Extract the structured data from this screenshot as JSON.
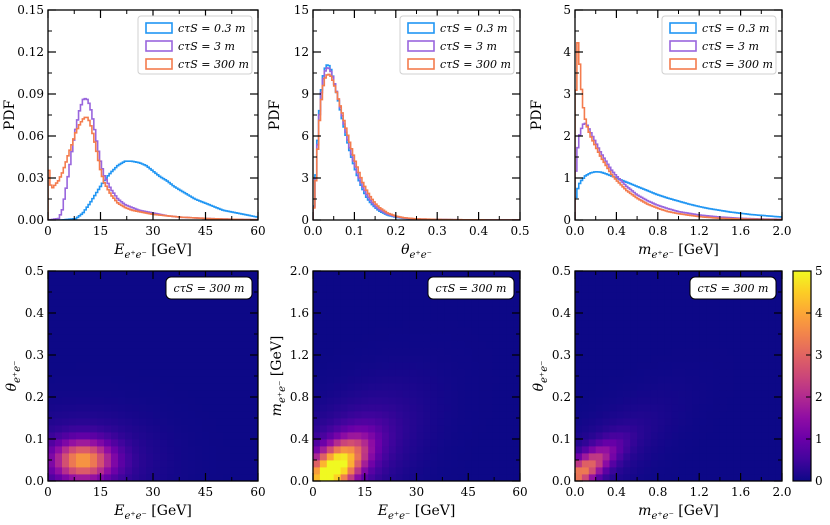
{
  "figure": {
    "colors": {
      "s03": "#2196f3",
      "s3": "#9966dd",
      "s300": "#f47c4e"
    },
    "colormap": [
      "#0d0887",
      "#41049d",
      "#6a00a8",
      "#8f0da4",
      "#b12a90",
      "#cc4778",
      "#e16462",
      "#f2844b",
      "#fca636",
      "#fcce25",
      "#f0f921"
    ]
  },
  "chart_data": [
    {
      "id": "hist_E",
      "type": "line",
      "subtype": "step-histogram",
      "xlabel": "E_{e+e-} [GeV]",
      "xlabel_main": "E",
      "xlabel_sub": "e⁺e⁻",
      "xlabel_unit": " [GeV]",
      "ylabel": "PDF",
      "xlim": [
        0,
        60
      ],
      "ylim": [
        0,
        0.15
      ],
      "xticks": [
        "0",
        "15",
        "30",
        "45",
        "60"
      ],
      "yticks": [
        "0.00",
        "0.03",
        "0.06",
        "0.09",
        "0.12",
        "0.15"
      ],
      "legend": [
        "cτS = 0.3 m",
        "cτS = 3 m",
        "cτS = 300 m"
      ],
      "series": [
        {
          "name": "cτS = 0.3 m",
          "x": [
            0,
            4,
            8,
            10,
            12,
            14,
            16,
            18,
            20,
            22,
            24,
            26,
            28,
            30,
            32,
            34,
            36,
            38,
            40,
            42,
            44,
            46,
            48,
            50,
            52,
            54,
            56,
            58,
            60
          ],
          "y": [
            0,
            0,
            0.001,
            0.005,
            0.012,
            0.02,
            0.028,
            0.034,
            0.039,
            0.042,
            0.042,
            0.041,
            0.039,
            0.035,
            0.031,
            0.028,
            0.024,
            0.021,
            0.018,
            0.015,
            0.013,
            0.011,
            0.009,
            0.007,
            0.006,
            0.005,
            0.004,
            0.003,
            0.002
          ]
        },
        {
          "name": "cτS = 3 m",
          "x": [
            0,
            3,
            4,
            5,
            6,
            7,
            8,
            9,
            10,
            11,
            12,
            13,
            14,
            15,
            16,
            18,
            20,
            22,
            24,
            26,
            28,
            30,
            34,
            38,
            42,
            46,
            50,
            55,
            60
          ],
          "y": [
            0,
            0.001,
            0.006,
            0.02,
            0.035,
            0.052,
            0.066,
            0.078,
            0.086,
            0.087,
            0.082,
            0.07,
            0.055,
            0.042,
            0.032,
            0.022,
            0.015,
            0.011,
            0.009,
            0.007,
            0.006,
            0.005,
            0.003,
            0.002,
            0.0015,
            0.001,
            0.0007,
            0.0004,
            0.0002
          ]
        },
        {
          "name": "cτS = 300 m",
          "x": [
            0,
            0.5,
            1,
            2,
            3,
            4,
            5,
            6,
            7,
            8,
            9,
            10,
            11,
            12,
            13,
            14,
            15,
            16,
            18,
            20,
            22,
            24,
            26,
            28,
            30,
            34,
            38,
            42,
            46,
            50,
            55,
            60
          ],
          "y": [
            0.042,
            0.03,
            0.022,
            0.025,
            0.028,
            0.033,
            0.04,
            0.048,
            0.055,
            0.063,
            0.068,
            0.072,
            0.074,
            0.07,
            0.06,
            0.048,
            0.036,
            0.027,
            0.018,
            0.012,
            0.009,
            0.007,
            0.006,
            0.005,
            0.004,
            0.003,
            0.002,
            0.0015,
            0.001,
            0.0007,
            0.0004,
            0.0002
          ]
        }
      ]
    },
    {
      "id": "hist_theta",
      "type": "line",
      "subtype": "step-histogram",
      "xlabel": "θ_{e+e-}",
      "xlabel_main": "θ",
      "xlabel_sub": "e⁺e⁻",
      "xlabel_unit": "",
      "ylabel": "PDF",
      "xlim": [
        0,
        0.5
      ],
      "ylim": [
        0,
        15
      ],
      "xticks": [
        "0.0",
        "0.1",
        "0.2",
        "0.3",
        "0.4",
        "0.5"
      ],
      "yticks": [
        "0",
        "3",
        "6",
        "9",
        "12",
        "15"
      ],
      "legend": [
        "cτS = 0.3 m",
        "cτS = 3 m",
        "cτS = 300 m"
      ],
      "series": [
        {
          "name": "cτS = 0.3 m",
          "x": [
            0,
            0.005,
            0.01,
            0.015,
            0.02,
            0.025,
            0.03,
            0.035,
            0.04,
            0.045,
            0.05,
            0.06,
            0.07,
            0.08,
            0.09,
            0.1,
            0.11,
            0.12,
            0.13,
            0.14,
            0.15,
            0.16,
            0.18,
            0.2,
            0.22,
            0.25,
            0.3,
            0.35,
            0.4,
            0.45,
            0.5
          ],
          "y": [
            0,
            2.2,
            5.0,
            7.5,
            9.2,
            10.3,
            10.9,
            11.1,
            11.0,
            10.6,
            10.0,
            8.7,
            7.3,
            6.0,
            4.8,
            3.8,
            2.9,
            2.2,
            1.6,
            1.2,
            0.9,
            0.65,
            0.35,
            0.2,
            0.12,
            0.06,
            0.03,
            0.015,
            0.008,
            0.004,
            0.002
          ]
        },
        {
          "name": "cτS = 3 m",
          "x": [
            0,
            0.005,
            0.01,
            0.015,
            0.02,
            0.025,
            0.03,
            0.035,
            0.04,
            0.045,
            0.05,
            0.06,
            0.07,
            0.08,
            0.09,
            0.1,
            0.11,
            0.12,
            0.13,
            0.14,
            0.15,
            0.16,
            0.18,
            0.2,
            0.22,
            0.25,
            0.3,
            0.35,
            0.4,
            0.45,
            0.5
          ],
          "y": [
            0,
            2.0,
            4.7,
            7.2,
            9.0,
            10.1,
            10.7,
            10.9,
            10.8,
            10.5,
            10.0,
            8.8,
            7.5,
            6.2,
            5.0,
            4.0,
            3.1,
            2.4,
            1.8,
            1.35,
            1.0,
            0.75,
            0.42,
            0.24,
            0.14,
            0.07,
            0.035,
            0.018,
            0.01,
            0.005,
            0.003
          ]
        },
        {
          "name": "cτS = 300 m",
          "x": [
            0,
            0.005,
            0.01,
            0.015,
            0.02,
            0.025,
            0.03,
            0.035,
            0.04,
            0.045,
            0.05,
            0.06,
            0.07,
            0.08,
            0.09,
            0.1,
            0.11,
            0.12,
            0.13,
            0.14,
            0.15,
            0.16,
            0.18,
            0.2,
            0.22,
            0.25,
            0.3,
            0.35,
            0.4,
            0.45,
            0.5
          ],
          "y": [
            0,
            1.9,
            4.4,
            6.8,
            8.5,
            9.6,
            10.2,
            10.4,
            10.4,
            10.2,
            9.8,
            8.8,
            7.7,
            6.5,
            5.4,
            4.4,
            3.5,
            2.7,
            2.1,
            1.6,
            1.2,
            0.9,
            0.5,
            0.28,
            0.16,
            0.08,
            0.04,
            0.02,
            0.011,
            0.006,
            0.003
          ]
        }
      ]
    },
    {
      "id": "hist_m",
      "type": "line",
      "subtype": "step-histogram",
      "xlabel": "m_{e+e-} [GeV]",
      "xlabel_main": "m",
      "xlabel_sub": "e⁺e⁻",
      "xlabel_unit": " [GeV]",
      "ylabel": "PDF",
      "xlim": [
        0,
        2.0
      ],
      "ylim": [
        0,
        5
      ],
      "xticks": [
        "0.0",
        "0.4",
        "0.8",
        "1.2",
        "1.6",
        "2.0"
      ],
      "yticks": [
        "0",
        "1",
        "2",
        "3",
        "4",
        "5"
      ],
      "legend": [
        "cτS = 0.3 m",
        "cτS = 3 m",
        "cτS = 300 m"
      ],
      "series": [
        {
          "name": "cτS = 0.3 m",
          "x": [
            0,
            0.02,
            0.05,
            0.1,
            0.15,
            0.2,
            0.25,
            0.3,
            0.35,
            0.4,
            0.5,
            0.6,
            0.7,
            0.8,
            0.9,
            1.0,
            1.1,
            1.2,
            1.3,
            1.4,
            1.5,
            1.6,
            1.7,
            1.8,
            1.9,
            2.0
          ],
          "y": [
            0.4,
            0.7,
            0.9,
            1.05,
            1.12,
            1.15,
            1.14,
            1.1,
            1.05,
            1.0,
            0.9,
            0.8,
            0.7,
            0.6,
            0.52,
            0.45,
            0.38,
            0.32,
            0.27,
            0.23,
            0.19,
            0.16,
            0.13,
            0.11,
            0.09,
            0.07
          ]
        },
        {
          "name": "cτS = 3 m",
          "x": [
            0,
            0.02,
            0.05,
            0.08,
            0.1,
            0.12,
            0.15,
            0.2,
            0.25,
            0.3,
            0.35,
            0.4,
            0.5,
            0.6,
            0.7,
            0.8,
            0.9,
            1.0,
            1.2,
            1.4,
            1.6,
            1.8,
            2.0
          ],
          "y": [
            0.8,
            1.6,
            2.1,
            2.28,
            2.3,
            2.25,
            2.1,
            1.85,
            1.6,
            1.4,
            1.2,
            1.05,
            0.8,
            0.6,
            0.46,
            0.35,
            0.27,
            0.2,
            0.12,
            0.07,
            0.04,
            0.025,
            0.015
          ]
        },
        {
          "name": "cτS = 300 m",
          "x": [
            0,
            0.02,
            0.04,
            0.06,
            0.08,
            0.1,
            0.12,
            0.15,
            0.2,
            0.25,
            0.3,
            0.35,
            0.4,
            0.5,
            0.6,
            0.7,
            0.8,
            0.9,
            1.0,
            1.2,
            1.4,
            1.6,
            1.8,
            2.0
          ],
          "y": [
            2.0,
            4.4,
            3.9,
            3.2,
            2.7,
            2.4,
            2.2,
            2.0,
            1.75,
            1.5,
            1.3,
            1.1,
            0.95,
            0.7,
            0.52,
            0.38,
            0.28,
            0.2,
            0.15,
            0.08,
            0.04,
            0.025,
            0.015,
            0.008
          ]
        }
      ]
    },
    {
      "id": "heat_E_theta",
      "type": "heatmap",
      "annotation": "cτS = 300 m",
      "xlabel": "E_{e+e-} [GeV]",
      "xlabel_main": "E",
      "xlabel_sub": "e⁺e⁻",
      "xlabel_unit": " [GeV]",
      "ylabel": "θ_{e+e-}",
      "ylabel_main": "θ",
      "ylabel_sub": "e⁺e⁻",
      "ylabel_unit": "",
      "xlim": [
        0,
        60
      ],
      "ylim": [
        0,
        0.5
      ],
      "xticks": [
        "0",
        "15",
        "30",
        "45",
        "60"
      ],
      "yticks": [
        "0.0",
        "0.1",
        "0.2",
        "0.3",
        "0.4",
        "0.5"
      ],
      "peak": {
        "x": 10,
        "y": 0.05,
        "sx": 5.5,
        "sy": 0.03,
        "max": 3.4
      },
      "bins": [
        30,
        30
      ]
    },
    {
      "id": "heat_E_m",
      "type": "heatmap",
      "annotation": "cτS = 300 m",
      "xlabel": "E_{e+e-} [GeV]",
      "xlabel_main": "E",
      "xlabel_sub": "e⁺e⁻",
      "xlabel_unit": " [GeV]",
      "ylabel": "m_{e+e-} [GeV]",
      "ylabel_main": "m",
      "ylabel_sub": "e⁺e⁻",
      "ylabel_unit": " [GeV]",
      "xlim": [
        0,
        60
      ],
      "ylim": [
        0,
        2.0
      ],
      "xticks": [
        "0",
        "15",
        "30",
        "45",
        "60"
      ],
      "yticks": [
        "0.0",
        "0.4",
        "0.8",
        "1.2",
        "1.6",
        "2.0"
      ],
      "peak": {
        "x": 6,
        "y": 0.12,
        "sx": 6,
        "sy": 0.18,
        "max": 5.0,
        "corr": 0.6
      },
      "bins": [
        30,
        30
      ]
    },
    {
      "id": "heat_m_theta",
      "type": "heatmap",
      "annotation": "cτS = 300 m",
      "xlabel": "m_{e+e-} [GeV]",
      "xlabel_main": "m",
      "xlabel_sub": "e⁺e⁻",
      "xlabel_unit": " [GeV]",
      "ylabel": "θ_{e+e-}",
      "ylabel_main": "θ",
      "ylabel_sub": "e⁺e⁻",
      "ylabel_unit": "",
      "xlim": [
        0,
        2.0
      ],
      "ylim": [
        0,
        0.5
      ],
      "xticks": [
        "0.0",
        "0.4",
        "0.8",
        "1.2",
        "1.6",
        "2.0"
      ],
      "yticks": [
        "0.0",
        "0.1",
        "0.2",
        "0.3",
        "0.4",
        "0.5"
      ],
      "peak": {
        "x": 0.05,
        "y": 0.02,
        "sx": 0.2,
        "sy": 0.04,
        "max": 3.0,
        "corr": 0.8
      },
      "bins": [
        30,
        30
      ]
    },
    {
      "id": "colorbar",
      "type": "heatmap",
      "subtype": "colorbar",
      "range": [
        0,
        5
      ],
      "ticks": [
        "0",
        "1",
        "2",
        "3",
        "4",
        "5"
      ]
    }
  ]
}
